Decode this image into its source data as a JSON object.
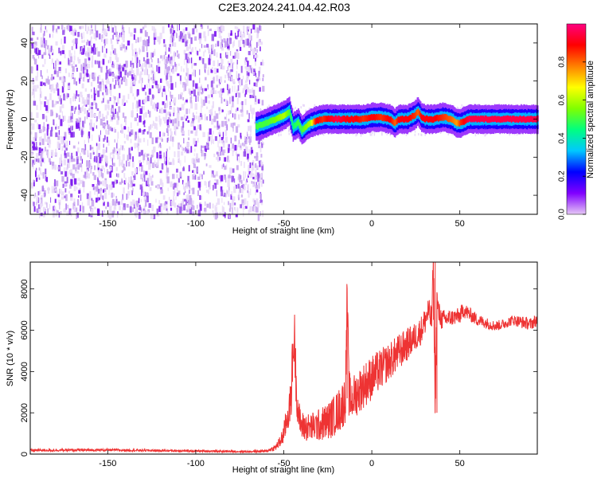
{
  "title": "C2E3.2024.241.04.42.R03",
  "chart_data": [
    {
      "type": "heatmap",
      "xlabel": "Height of straight line (km)",
      "ylabel": "Frequency (Hz)",
      "xlim": [
        -194,
        94
      ],
      "ylim": [
        -50,
        50
      ],
      "xticks": [
        -150,
        -100,
        -50,
        0,
        50
      ],
      "yticks": [
        -40,
        -20,
        0,
        20,
        40
      ],
      "colorbar": {
        "label": "Normalized spectral amplitude",
        "range": [
          0,
          1
        ],
        "ticks": [
          "0.0",
          "0.2",
          "0.4",
          "0.6",
          "0.8"
        ],
        "colors": [
          "#e6c8f5",
          "#8000ff",
          "#0000ff",
          "#00c8ff",
          "#00ff80",
          "#80ff00",
          "#ffff00",
          "#ff8000",
          "#ff0000",
          "#ff0080"
        ]
      },
      "noise_region": {
        "x_range": [
          -194,
          -62
        ],
        "amplitude_range": [
          0.0,
          0.15
        ]
      },
      "ridge": {
        "x": [
          -66,
          -60,
          -55,
          -50,
          -47,
          -45,
          -42,
          -40,
          -38,
          -35,
          -32,
          -28,
          -25,
          -20,
          -15,
          -10,
          -5,
          0,
          5,
          10,
          13,
          15,
          20,
          24,
          26,
          28,
          30,
          35,
          40,
          45,
          48,
          50,
          55,
          60,
          70,
          80,
          94
        ],
        "y": [
          -4,
          -2,
          0,
          2,
          4,
          -4,
          -2,
          -6,
          -4,
          -2,
          -1,
          0,
          0,
          0,
          0,
          0,
          0,
          1,
          1,
          0,
          -2,
          0,
          0,
          2,
          4,
          1,
          0,
          0,
          1,
          0,
          -2,
          -2,
          0,
          0,
          0,
          0,
          0
        ],
        "amplitude": [
          0.5,
          0.5,
          0.55,
          0.6,
          0.5,
          0.45,
          0.5,
          0.5,
          0.55,
          0.6,
          0.9,
          0.85,
          0.9,
          0.95,
          0.9,
          0.9,
          0.85,
          0.9,
          0.85,
          0.9,
          0.8,
          0.9,
          0.9,
          0.85,
          0.8,
          0.9,
          0.9,
          0.9,
          0.85,
          0.8,
          0.75,
          0.85,
          0.95,
          0.95,
          0.95,
          0.95,
          0.95
        ]
      }
    },
    {
      "type": "line",
      "xlabel": "Height of straight line (km)",
      "ylabel": "SNR (10 * v/v)",
      "xlim": [
        -194,
        94
      ],
      "ylim": [
        0,
        9300
      ],
      "xticks": [
        -150,
        -100,
        -50,
        0,
        50
      ],
      "yticks": [
        0,
        2000,
        4000,
        6000,
        8000
      ],
      "color": "#ee3333",
      "series": [
        {
          "x": [
            -194,
            -150,
            -100,
            -70,
            -60,
            -55,
            -52,
            -50,
            -48,
            -46,
            -45,
            -44,
            -43,
            -42,
            -41,
            -40,
            -38,
            -35,
            -30,
            -25,
            -22,
            -20,
            -18,
            -16,
            -15,
            -14,
            -13,
            -12,
            -10,
            -5,
            0,
            5,
            10,
            15,
            20,
            25,
            28,
            30,
            32,
            34,
            35,
            36,
            37,
            38,
            40,
            45,
            50,
            52,
            55,
            60,
            70,
            75,
            80,
            85,
            90,
            94
          ],
          "y": [
            180,
            200,
            150,
            120,
            150,
            300,
            600,
            1000,
            1800,
            2500,
            4500,
            5800,
            3500,
            2200,
            1600,
            1400,
            1300,
            1300,
            1400,
            1600,
            1800,
            2000,
            2200,
            2500,
            2700,
            7600,
            3000,
            2600,
            2800,
            3300,
            3700,
            4100,
            4500,
            4900,
            5300,
            5700,
            6000,
            6400,
            6900,
            6500,
            9300,
            2000,
            7500,
            6800,
            6500,
            6600,
            6700,
            7000,
            6800,
            6500,
            6200,
            6300,
            6500,
            6400,
            6300,
            6500
          ],
          "noise_amplitude": [
            60,
            60,
            50,
            50,
            60,
            150,
            300,
            500,
            800,
            1000,
            1500,
            1500,
            1200,
            900,
            800,
            700,
            700,
            700,
            800,
            900,
            1000,
            1000,
            1100,
            1200,
            1200,
            1500,
            1200,
            1100,
            1100,
            1100,
            1100,
            1000,
            900,
            900,
            800,
            700,
            700,
            700,
            700,
            700,
            800,
            800,
            700,
            600,
            500,
            400,
            400,
            400,
            350,
            300,
            250,
            250,
            250,
            300,
            300,
            300
          ]
        }
      ]
    }
  ]
}
